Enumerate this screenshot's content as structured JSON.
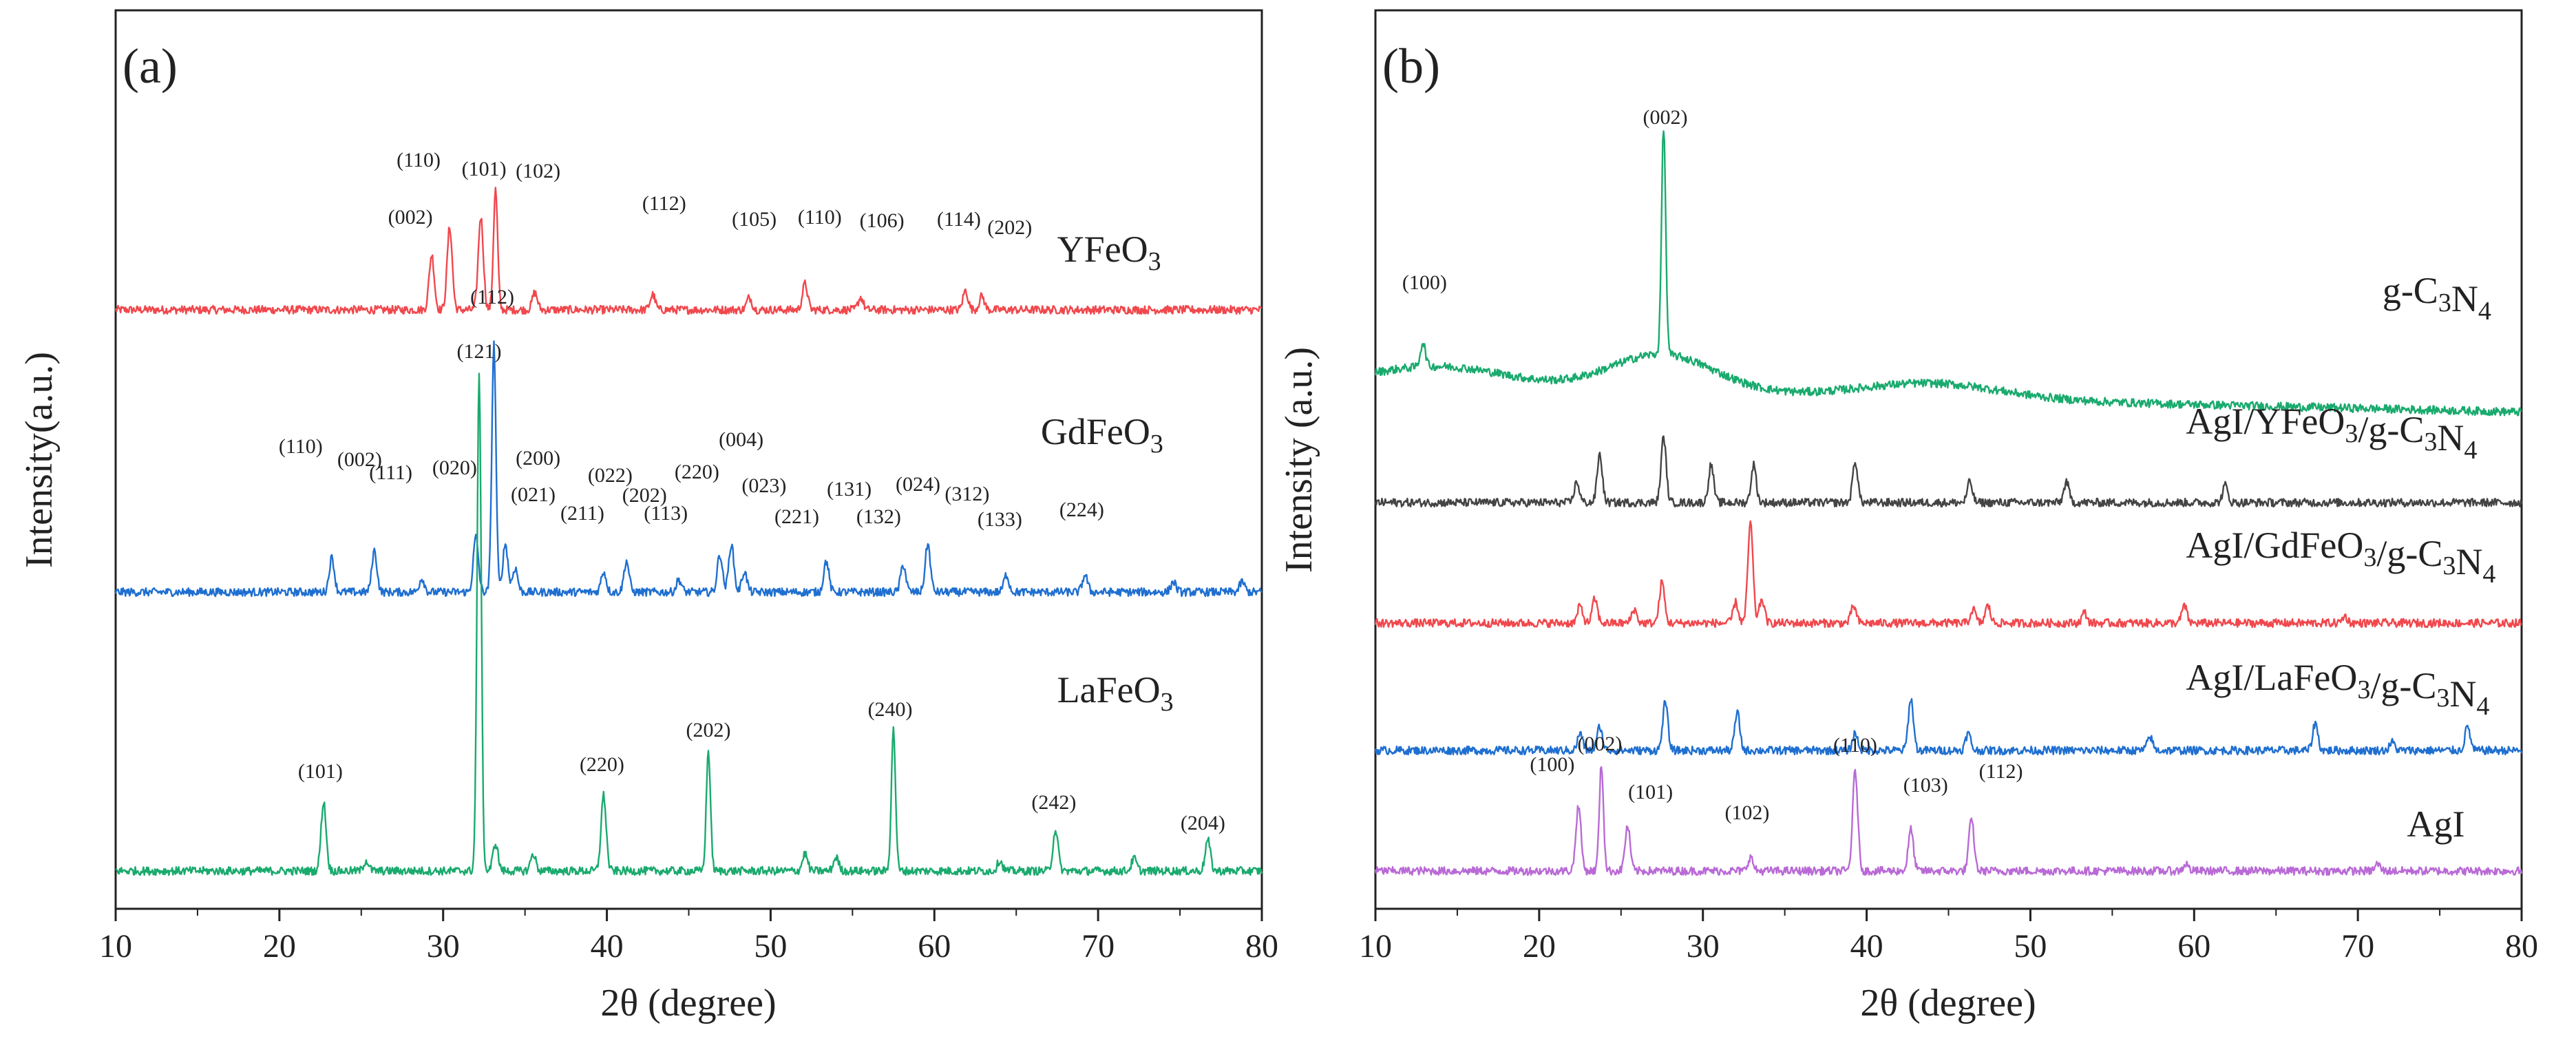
{
  "colors": {
    "red": "#f0484d",
    "blue": "#1f6fd0",
    "green": "#1aaa6e",
    "gray": "#444444",
    "purple": "#b96ad6",
    "axis": "#222222"
  },
  "chart_data": [
    {
      "type": "line",
      "panel_label": "(a)",
      "xlabel": "2θ (degree)",
      "ylabel": "Intensity(a.u.)",
      "xlim": [
        10,
        80
      ],
      "xticks": [
        10,
        20,
        30,
        40,
        50,
        60,
        70,
        80
      ],
      "series": [
        {
          "name": "YFeO3",
          "label_main": "YFeO",
          "label_sub": "3",
          "color": "#f0484d",
          "offset": 870,
          "label_x": 67.5,
          "label_y": 940,
          "peaks": [
            [
              29.3,
              80
            ],
            [
              30.4,
              120
            ],
            [
              32.3,
              135
            ],
            [
              33.2,
              175
            ],
            [
              35.6,
              25
            ],
            [
              42.8,
              22
            ],
            [
              48.7,
              18
            ],
            [
              52.1,
              38
            ],
            [
              55.5,
              18
            ],
            [
              61.9,
              28
            ],
            [
              62.9,
              20
            ]
          ],
          "peak_labels": [
            {
              "text": "(110)",
              "x": 28.5,
              "y": 1078
            },
            {
              "text": "(101)",
              "x": 32.5,
              "y": 1065
            },
            {
              "text": "(102)",
              "x": 35.8,
              "y": 1062
            },
            {
              "text": "(002)",
              "x": 28.0,
              "y": 995
            },
            {
              "text": "(112)",
              "x": 43.5,
              "y": 1015
            },
            {
              "text": "(105)",
              "x": 49.0,
              "y": 992
            },
            {
              "text": "(110)",
              "x": 53.0,
              "y": 995
            },
            {
              "text": "(106)",
              "x": 56.8,
              "y": 990
            },
            {
              "text": "(114)",
              "x": 61.5,
              "y": 992
            },
            {
              "text": "(202)",
              "x": 64.6,
              "y": 980
            }
          ]
        },
        {
          "name": "GdFeO3",
          "label_main": "GdFeO",
          "label_sub": "3",
          "color": "#1f6fd0",
          "offset": 460,
          "label_x": 66.5,
          "label_y": 675,
          "peaks": [
            [
              23.2,
              50
            ],
            [
              25.8,
              60
            ],
            [
              28.7,
              20
            ],
            [
              32.0,
              80
            ],
            [
              33.1,
              360
            ],
            [
              33.8,
              70
            ],
            [
              34.4,
              35
            ],
            [
              39.8,
              30
            ],
            [
              41.2,
              45
            ],
            [
              44.4,
              18
            ],
            [
              46.9,
              55
            ],
            [
              47.6,
              70
            ],
            [
              48.4,
              30
            ],
            [
              53.4,
              45
            ],
            [
              58.1,
              40
            ],
            [
              59.6,
              70
            ],
            [
              64.4,
              25
            ],
            [
              69.2,
              25
            ],
            [
              74.6,
              15
            ],
            [
              78.8,
              15
            ]
          ],
          "peak_labels": [
            {
              "text": "(112)",
              "x": 33.0,
              "y": 879
            },
            {
              "text": "(110)",
              "x": 21.3,
              "y": 662
            },
            {
              "text": "(002)",
              "x": 24.9,
              "y": 643
            },
            {
              "text": "(111)",
              "x": 26.8,
              "y": 624
            },
            {
              "text": "(020)",
              "x": 30.7,
              "y": 631
            },
            {
              "text": "(200)",
              "x": 35.8,
              "y": 645
            },
            {
              "text": "(021)",
              "x": 35.5,
              "y": 592
            },
            {
              "text": "(022)",
              "x": 40.2,
              "y": 620
            },
            {
              "text": "(202)",
              "x": 42.3,
              "y": 591
            },
            {
              "text": "(211)",
              "x": 38.5,
              "y": 565
            },
            {
              "text": "(113)",
              "x": 43.6,
              "y": 565
            },
            {
              "text": "(220)",
              "x": 45.5,
              "y": 625
            },
            {
              "text": "(004)",
              "x": 48.2,
              "y": 672
            },
            {
              "text": "(023)",
              "x": 49.6,
              "y": 605
            },
            {
              "text": "(221)",
              "x": 51.6,
              "y": 560
            },
            {
              "text": "(131)",
              "x": 54.8,
              "y": 600
            },
            {
              "text": "(132)",
              "x": 56.6,
              "y": 560
            },
            {
              "text": "(024)",
              "x": 59.0,
              "y": 607
            },
            {
              "text": "(312)",
              "x": 62.0,
              "y": 593
            },
            {
              "text": "(133)",
              "x": 64.0,
              "y": 556
            },
            {
              "text": "(224)",
              "x": 69.0,
              "y": 570
            }
          ]
        },
        {
          "name": "LaFeO3",
          "label_main": "LaFeO",
          "label_sub": "3",
          "color": "#1aaa6e",
          "offset": 55,
          "label_x": 67.5,
          "label_y": 300,
          "peaks": [
            [
              22.7,
              100
            ],
            [
              25.3,
              15
            ],
            [
              32.2,
              720
            ],
            [
              33.2,
              40
            ],
            [
              35.5,
              25
            ],
            [
              39.8,
              110
            ],
            [
              46.2,
              175
            ],
            [
              52.1,
              25
            ],
            [
              54.0,
              20
            ],
            [
              57.5,
              205
            ],
            [
              64.0,
              15
            ],
            [
              67.4,
              60
            ],
            [
              72.2,
              18
            ],
            [
              76.7,
              45
            ]
          ],
          "peak_labels": [
            {
              "text": "(121)",
              "x": 32.2,
              "y": 800
            },
            {
              "text": "(101)",
              "x": 22.5,
              "y": 190
            },
            {
              "text": "(220)",
              "x": 39.7,
              "y": 200
            },
            {
              "text": "(202)",
              "x": 46.2,
              "y": 250
            },
            {
              "text": "(240)",
              "x": 57.3,
              "y": 280
            },
            {
              "text": "(242)",
              "x": 67.3,
              "y": 145
            },
            {
              "text": "(204)",
              "x": 76.4,
              "y": 115
            }
          ]
        }
      ]
    },
    {
      "type": "line",
      "panel_label": "(b)",
      "xlabel": "2θ (degree)",
      "ylabel": "Intensity (a.u.)",
      "xlim": [
        10,
        80
      ],
      "xticks": [
        10,
        20,
        30,
        40,
        50,
        60,
        70,
        80
      ],
      "series": [
        {
          "name": "g-C3N4",
          "label_main": "g-C",
          "label_sub": "3",
          "label_main2": "N",
          "label_sub2": "4",
          "color": "#1aaa6e",
          "offset": 760,
          "label_x": 71.5,
          "label_y": 880,
          "peaks": [
            [
              12.9,
              35
            ],
            [
              27.6,
              330
            ]
          ],
          "peak_labels": [
            {
              "text": "(002)",
              "x": 27.7,
              "y": 1140
            },
            {
              "text": "(100)",
              "x": 13.0,
              "y": 900
            }
          ]
        },
        {
          "name": "AgI/YFeO3/g-C3N4",
          "label_main": "AgI/YFeO",
          "label_sub": "3",
          "label_main2": "/g-C",
          "label_sub2": "3",
          "label_main3": "N",
          "label_sub3": "4",
          "color": "#444444",
          "offset": 590,
          "label_x": 59.5,
          "label_y": 690,
          "peaks": [
            [
              22.3,
              30
            ],
            [
              23.7,
              70
            ],
            [
              27.6,
              95
            ],
            [
              30.5,
              55
            ],
            [
              33.1,
              55
            ],
            [
              39.3,
              60
            ],
            [
              46.3,
              30
            ],
            [
              52.2,
              30
            ],
            [
              61.9,
              25
            ]
          ],
          "peak_labels": []
        },
        {
          "name": "AgI/GdFeO3/g-C3N4",
          "label_main": "AgI/GdFeO",
          "label_sub": "3",
          "label_main2": "/g-C",
          "label_sub2": "3",
          "label_main3": "N",
          "label_sub3": "4",
          "color": "#f0484d",
          "offset": 415,
          "label_x": 59.5,
          "label_y": 510,
          "peaks": [
            [
              22.5,
              25
            ],
            [
              23.4,
              35
            ],
            [
              25.8,
              20
            ],
            [
              27.5,
              60
            ],
            [
              32.0,
              30
            ],
            [
              32.9,
              145
            ],
            [
              33.6,
              35
            ],
            [
              39.2,
              25
            ],
            [
              46.5,
              20
            ],
            [
              47.4,
              25
            ],
            [
              53.3,
              15
            ],
            [
              59.4,
              25
            ],
            [
              69.2,
              10
            ]
          ],
          "peak_labels": []
        },
        {
          "name": "AgI/LaFeO3/g-C3N4",
          "label_main": "AgI/LaFeO",
          "label_sub": "3",
          "label_main2": "/g-C",
          "label_sub2": "3",
          "label_main3": "N",
          "label_sub3": "4",
          "color": "#1f6fd0",
          "offset": 230,
          "label_x": 59.5,
          "label_y": 318,
          "peaks": [
            [
              22.5,
              25
            ],
            [
              23.7,
              35
            ],
            [
              27.7,
              70
            ],
            [
              32.1,
              55
            ],
            [
              39.3,
              25
            ],
            [
              42.7,
              75
            ],
            [
              46.2,
              25
            ],
            [
              57.3,
              20
            ],
            [
              67.4,
              40
            ],
            [
              72.1,
              12
            ],
            [
              76.7,
              35
            ]
          ],
          "peak_labels": []
        },
        {
          "name": "AgI",
          "label_main": "AgI",
          "color": "#b96ad6",
          "offset": 55,
          "label_x": 73.0,
          "label_y": 105,
          "peaks": [
            [
              22.4,
              95
            ],
            [
              23.8,
              155
            ],
            [
              25.4,
              65
            ],
            [
              32.9,
              20
            ],
            [
              39.3,
              145
            ],
            [
              42.7,
              60
            ],
            [
              46.4,
              75
            ],
            [
              59.5,
              10
            ],
            [
              71.2,
              10
            ]
          ],
          "peak_labels": [
            {
              "text": "(002)",
              "x": 23.7,
              "y": 230
            },
            {
              "text": "(100)",
              "x": 20.8,
              "y": 200
            },
            {
              "text": "(101)",
              "x": 26.8,
              "y": 160
            },
            {
              "text": "(102)",
              "x": 32.7,
              "y": 130
            },
            {
              "text": "(110)",
              "x": 39.3,
              "y": 228
            },
            {
              "text": "(103)",
              "x": 43.6,
              "y": 170
            },
            {
              "text": "(112)",
              "x": 48.2,
              "y": 190
            }
          ]
        }
      ]
    }
  ]
}
